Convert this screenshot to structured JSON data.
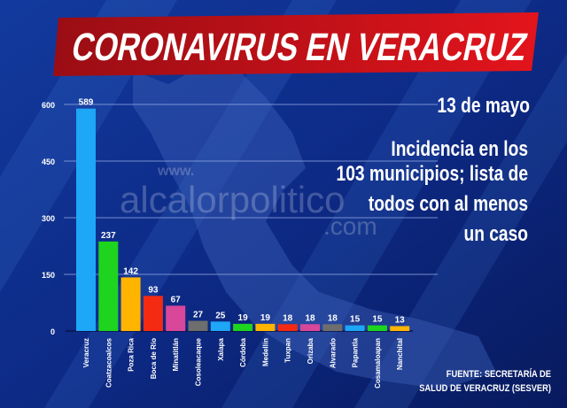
{
  "header": {
    "title": "CORONAVIRUS EN VERACRUZ",
    "date": "13 de mayo",
    "subtitle_lines": [
      "Incidencia en los",
      "103 municipios; lista de",
      "todos con al menos",
      "un caso"
    ]
  },
  "watermark": {
    "line1": "www.",
    "line2": "alcalorpolitico",
    "line3": ".com"
  },
  "source": {
    "line1": "FUENTE: SECRETARÍA DE",
    "line2": "SALUD DE VERACRUZ (SESVER)"
  },
  "colors": {
    "banner": "#c4121b",
    "background": "#0d2a86",
    "grid": "#8fa6e0"
  },
  "chart_data": {
    "type": "bar",
    "title": "Incidencia en los 103 municipios",
    "xlabel": "",
    "ylabel": "",
    "ylim": [
      0,
      600
    ],
    "yticks": [
      0,
      150,
      300,
      450,
      600
    ],
    "grid": true,
    "categories": [
      "Veracruz",
      "Coatzacoalcos",
      "Poza Rica",
      "Boca de Río",
      "Minatitlán",
      "Cosoleacaque",
      "Xalapa",
      "Córdoba",
      "Medellín",
      "Tuxpan",
      "Orizaba",
      "Alvarado",
      "Papantla",
      "Cosamaloapan",
      "Nanchital"
    ],
    "values": [
      589,
      237,
      142,
      93,
      67,
      27,
      25,
      19,
      19,
      18,
      18,
      18,
      15,
      15,
      13
    ],
    "bar_colors": [
      "#1ea6f7",
      "#1ed41e",
      "#ffb400",
      "#f52a12",
      "#d8479a",
      "#6e6e6e",
      "#1ea6f7",
      "#1ed41e",
      "#ffb400",
      "#f52a12",
      "#d8479a",
      "#6e6e6e",
      "#1ea6f7",
      "#1ed41e",
      "#ffb400"
    ]
  }
}
